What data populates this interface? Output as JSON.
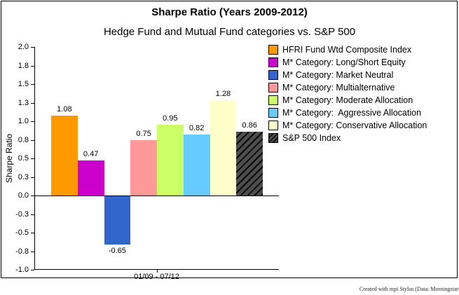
{
  "attribution": "Created with mpi Stylus (Data: Morningstar®",
  "chart_data": {
    "type": "bar",
    "title": "Sharpe Ratio (Years 2009-2012)",
    "subtitle": "Hedge Fund and Mutual Fund categories vs. S&P 500",
    "ylabel": "Sharpe Ratio",
    "xlabel": "01/09 - 07/12",
    "ylim": [
      -1.0,
      2.0
    ],
    "ytick_step": 0.25,
    "grid": false,
    "legend_position": "right",
    "yticks": [
      {
        "label": "2.0",
        "value": 2.0
      },
      {
        "label": "1.8",
        "value": 1.75
      },
      {
        "label": "1.5",
        "value": 1.5
      },
      {
        "label": "1.3",
        "value": 1.25
      },
      {
        "label": "1.0",
        "value": 1.0
      },
      {
        "label": "0.8",
        "value": 0.75
      },
      {
        "label": "0.5",
        "value": 0.5
      },
      {
        "label": "0.3",
        "value": 0.25
      },
      {
        "label": "0.0",
        "value": 0.0
      },
      {
        "label": "-0.3",
        "value": -0.25
      },
      {
        "label": "-0.5",
        "value": -0.5
      },
      {
        "label": "-0.8",
        "value": -0.75
      },
      {
        "label": "-1.0",
        "value": -1.0
      }
    ],
    "categories": [
      "HFRI Fund Wtd Composite Index",
      "M* Category: Long/Short Equity",
      "M* Category: Market Neutral",
      "M* Category: Multialternative",
      "M* Category: Moderate Allocation",
      "M* Category:  Aggressive Allocation",
      "M* Category: Conservative Allocation",
      "S&P 500 Index"
    ],
    "series": [
      {
        "name": "HFRI Fund Wtd Composite Index",
        "value": 1.08,
        "value_label": "1.08",
        "color": "#FF9900",
        "hatch": false
      },
      {
        "name": "M* Category: Long/Short Equity",
        "value": 0.47,
        "value_label": "0.47",
        "color": "#CC00CC",
        "hatch": false
      },
      {
        "name": "M* Category: Market Neutral",
        "value": -0.65,
        "value_label": "-0.65",
        "color": "#3366CC",
        "hatch": false
      },
      {
        "name": "M* Category: Multialternative",
        "value": 0.75,
        "value_label": "0.75",
        "color": "#FF9999",
        "hatch": false
      },
      {
        "name": "M* Category: Moderate Allocation",
        "value": 0.95,
        "value_label": "0.95",
        "color": "#CCFF66",
        "hatch": false
      },
      {
        "name": "M* Category:  Aggressive Allocation",
        "value": 0.82,
        "value_label": "0.82",
        "color": "#66CCFF",
        "hatch": false
      },
      {
        "name": "M* Category: Conservative Allocation",
        "value": 1.28,
        "value_label": "1.28",
        "color": "#FFFFCC",
        "hatch": false
      },
      {
        "name": "S&P 500 Index",
        "value": 0.86,
        "value_label": "0.86",
        "color": "#4D4D4D",
        "hatch": true
      }
    ]
  }
}
